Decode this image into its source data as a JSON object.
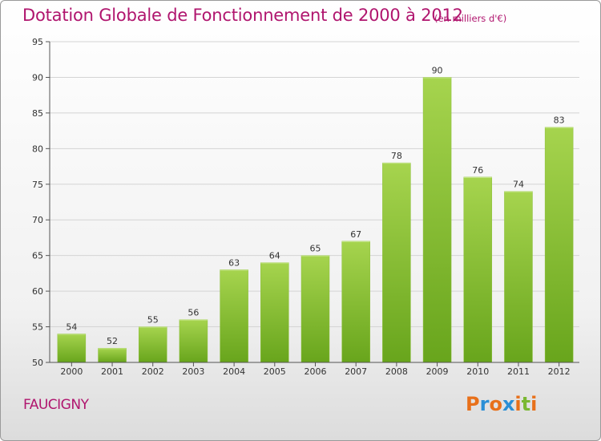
{
  "title": "Dotation Globale de Fonctionnement de 2000 à 2012",
  "subtitle": "(en milliers d'€)",
  "commune": "FAUCIGNY",
  "logo": {
    "letters": [
      "P",
      "r",
      "o",
      "x",
      "i",
      "t",
      "i"
    ],
    "colors": [
      "#e8701a",
      "#2a8fd6",
      "#e8701a",
      "#2a8fd6",
      "#e8701a",
      "#7ab832",
      "#e8701a"
    ]
  },
  "colors": {
    "title": "#b0156e",
    "bar_light": "#a6d44e",
    "bar_dark": "#68a51c",
    "grid": "#d4d4d4"
  },
  "chart_data": {
    "type": "bar",
    "title": "Dotation Globale de Fonctionnement de 2000 à 2012",
    "subtitle": "(en milliers d'€)",
    "categories": [
      "2000",
      "2001",
      "2002",
      "2003",
      "2004",
      "2005",
      "2006",
      "2007",
      "2008",
      "2009",
      "2010",
      "2011",
      "2012"
    ],
    "values": [
      54,
      52,
      55,
      56,
      63,
      64,
      65,
      67,
      78,
      90,
      76,
      74,
      83
    ],
    "ylim": [
      50,
      95
    ],
    "yticks": [
      50,
      55,
      60,
      65,
      70,
      75,
      80,
      85,
      90,
      95
    ],
    "grid": true,
    "data_labels": true
  }
}
